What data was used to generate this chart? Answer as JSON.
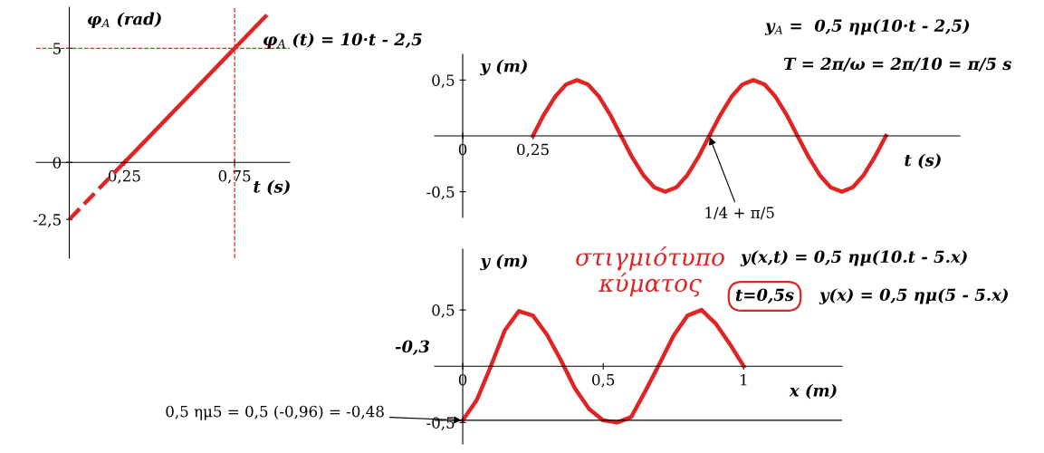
{
  "chart_data": [
    {
      "type": "line",
      "xlabel": "t (s)",
      "ylabel": "φ$_{A}$ (rad)",
      "xlim": [
        -0.15,
        1.0
      ],
      "ylim": [
        -4.2,
        6.8
      ],
      "xticks": [
        {
          "value": 0.25,
          "label": "0,25"
        },
        {
          "value": 0.75,
          "label": "0,75"
        }
      ],
      "yticks": [
        {
          "value": 5,
          "label": "5"
        },
        {
          "value": 0,
          "label": "0"
        },
        {
          "value": -2.5,
          "label": "-2,5"
        }
      ],
      "series": [
        {
          "color": "#e02424",
          "x": [
            0.25,
            0.89
          ],
          "values": [
            0,
            6.4
          ],
          "line_style": "solid"
        },
        {
          "color": "#e02424",
          "x": [
            0,
            0.25
          ],
          "values": [
            -2.5,
            0
          ],
          "line_style": "dashed"
        }
      ],
      "ref_lines": [
        {
          "axis": "x",
          "value": 0.75,
          "color": "#e02424",
          "line_style": "dashed"
        },
        {
          "axis": "y",
          "value": 5,
          "color": "#e02424",
          "line_style": "dashed"
        }
      ],
      "annotations": [
        "φ$_{A}$ (t) = 10·t - 2,5"
      ],
      "grid": false,
      "legend": false,
      "marker": "none"
    },
    {
      "type": "line",
      "xlabel": "t (s)",
      "ylabel": "y (m)",
      "xlim": [
        -0.1,
        1.77
      ],
      "ylim": [
        -0.73,
        0.73
      ],
      "xticks": [
        {
          "value": 0,
          "label": "0"
        },
        {
          "value": 0.25,
          "label": "0,25"
        }
      ],
      "yticks": [
        {
          "value": 0.5,
          "label": "0,5"
        },
        {
          "value": -0.5,
          "label": "-0,5"
        }
      ],
      "series": [
        {
          "color": "#e02424",
          "line_style": "solid",
          "x": [
            0.25,
            0.289,
            0.329,
            0.368,
            0.407,
            0.446,
            0.486,
            0.525,
            0.564,
            0.603,
            0.643,
            0.682,
            0.721,
            0.761,
            0.8,
            0.839,
            0.878,
            0.918,
            0.957,
            0.996,
            1.035,
            1.075,
            1.114,
            1.153,
            1.192,
            1.232,
            1.271,
            1.31,
            1.35,
            1.389,
            1.428,
            1.467,
            1.507
          ],
          "values": [
            0,
            0.19,
            0.35,
            0.46,
            0.5,
            0.46,
            0.35,
            0.19,
            0,
            -0.19,
            -0.35,
            -0.46,
            -0.5,
            -0.46,
            -0.35,
            -0.19,
            0,
            0.19,
            0.35,
            0.46,
            0.5,
            0.46,
            0.35,
            0.19,
            0,
            -0.19,
            -0.35,
            -0.46,
            -0.5,
            -0.46,
            -0.35,
            -0.19,
            0
          ]
        }
      ],
      "annotations": [
        "y$_{A}$ =  0,5 ημ(10·t - 2,5)",
        "T = 2π/ω = 2π/10 = π/5 s",
        {
          "text": "1/4 + π/5",
          "x": 0.878,
          "y": 0
        }
      ],
      "grid": false,
      "legend": false,
      "marker": "none"
    },
    {
      "type": "line",
      "title": "στιγμιότυπο\nκύματος",
      "xlabel": "x (m)",
      "ylabel": "y (m)",
      "xlim": [
        -0.1,
        1.35
      ],
      "ylim": [
        -0.69,
        1.04
      ],
      "xticks": [
        {
          "value": 0,
          "label": "0"
        },
        {
          "value": 0.5,
          "label": "0,5"
        },
        {
          "value": 1,
          "label": "1"
        }
      ],
      "yticks": [
        {
          "value": 0.5,
          "label": "0,5"
        },
        {
          "value": -0.5,
          "label": "-0,5"
        }
      ],
      "series": [
        {
          "color": "#e02424",
          "line_style": "solid",
          "x": [
            0,
            0.05,
            0.1,
            0.15,
            0.2,
            0.25,
            0.3,
            0.35,
            0.4,
            0.45,
            0.5,
            0.55,
            0.6,
            0.65,
            0.7,
            0.75,
            0.8,
            0.85,
            0.9,
            0.95,
            1.0
          ],
          "values": [
            -0.48,
            -0.3,
            0,
            0.32,
            0.49,
            0.45,
            0.28,
            0.05,
            -0.2,
            -0.38,
            -0.48,
            -0.5,
            -0.45,
            -0.22,
            0.02,
            0.27,
            0.45,
            0.5,
            0.38,
            0.2,
            0
          ]
        }
      ],
      "ref_lines": [
        {
          "axis": "y",
          "value": -0.48,
          "color": "#000000",
          "line_style": "solid"
        }
      ],
      "annotations": [
        "y(x,t) = 0,5 ημ(10.t - 5.x)",
        "t=0,5s",
        "y(x) = 0,5 ημ(5 - 5.x)",
        "-0,3",
        {
          "text": "0,5 ημ5 = 0,5 (-0,96) = -0,48",
          "x": 0,
          "y": -0.48
        }
      ],
      "grid": false,
      "legend": false,
      "marker": "none"
    }
  ]
}
